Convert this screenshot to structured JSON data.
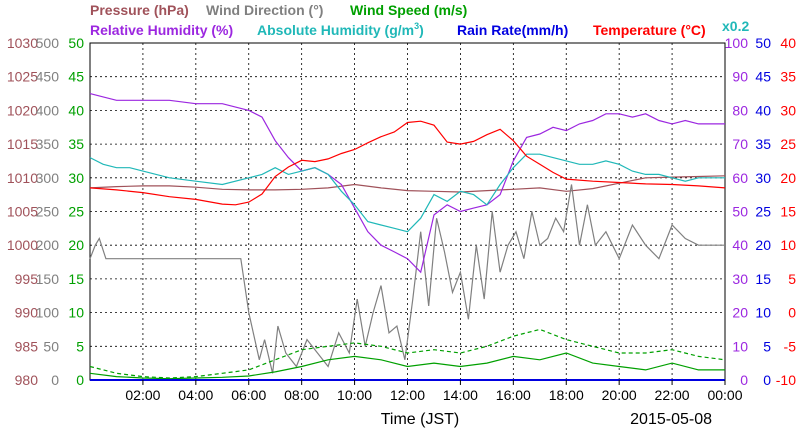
{
  "chart_data": {
    "type": "line",
    "date": "2015-05-08",
    "xlabel": "Time (JST)",
    "x_ticks": [
      "02:00",
      "04:00",
      "06:00",
      "08:00",
      "10:00",
      "12:00",
      "14:00",
      "16:00",
      "18:00",
      "20:00",
      "22:00",
      "00:00"
    ],
    "legend": [
      {
        "label": "Pressure (hPa)",
        "color": "#a0525a"
      },
      {
        "label": "Wind Direction (°)",
        "color": "#808080"
      },
      {
        "label": "Wind Speed (m/s)",
        "color": "#00a000"
      },
      {
        "label": "Relative Humidity (%)",
        "color": "#9c27e0"
      },
      {
        "label": "Absolute Humidity (g/m",
        "sup": "3",
        "close": ")",
        "color": "#20b8b8"
      },
      {
        "label": "Rain Rate(mm/h)",
        "color": "#0000e0"
      },
      {
        "label": "Temperature (°C)",
        "color": "#ff0000"
      },
      {
        "label": "x0.2",
        "color": "#20b8b8"
      }
    ],
    "axes": {
      "pressure": {
        "ylim": [
          980,
          1030
        ],
        "ticks": [
          "1030",
          "1025",
          "1020",
          "1015",
          "1010",
          "1005",
          "1000",
          "995",
          "990",
          "985",
          "980"
        ],
        "color": "#a0525a"
      },
      "wind_direction": {
        "ylim": [
          0,
          500
        ],
        "ticks": [
          "500",
          "450",
          "400",
          "350",
          "300",
          "250",
          "200",
          "150",
          "100",
          "50",
          "0"
        ],
        "color": "#808080"
      },
      "wind_speed": {
        "ylim": [
          0,
          50
        ],
        "ticks": [
          "50",
          "45",
          "40",
          "35",
          "30",
          "25",
          "20",
          "15",
          "10",
          "5",
          "0"
        ],
        "color": "#00a000"
      },
      "relative_humidity": {
        "ylim": [
          0,
          100
        ],
        "ticks": [
          "100",
          "90",
          "80",
          "70",
          "60",
          "50",
          "40",
          "30",
          "20",
          "10",
          "0"
        ],
        "color": "#9c27e0"
      },
      "rain_rate": {
        "ylim": [
          0,
          50
        ],
        "ticks": [
          "50",
          "45",
          "40",
          "35",
          "30",
          "25",
          "20",
          "15",
          "10",
          "5",
          "0"
        ],
        "color": "#0000e0"
      },
      "temperature": {
        "ylim": [
          -10,
          40
        ],
        "ticks": [
          "40",
          "35",
          "30",
          "25",
          "20",
          "15",
          "10",
          "5",
          "0",
          "-5",
          "-10"
        ],
        "color": "#ff0000"
      }
    },
    "series": [
      {
        "name": "Pressure (hPa)",
        "color": "#a0525a",
        "x": [
          0,
          1,
          2,
          3,
          4,
          5,
          6,
          7,
          8,
          9,
          10,
          11,
          12,
          13,
          14,
          15,
          16,
          17,
          18,
          19,
          20,
          21,
          22,
          23,
          24
        ],
        "y": [
          1008.5,
          1008.7,
          1008.8,
          1008.8,
          1008.6,
          1008.3,
          1008.2,
          1008.2,
          1008.3,
          1008.5,
          1009,
          1008.5,
          1008.1,
          1008.0,
          1007.9,
          1008.1,
          1008.3,
          1008.5,
          1008.0,
          1008.4,
          1009.2,
          1010.0,
          1010.1,
          1010.2,
          1010.3
        ]
      },
      {
        "name": "Wind Direction (°)",
        "color": "#808080",
        "x": [
          0,
          0.2,
          0.35,
          0.6,
          1,
          2,
          3,
          4,
          5,
          5.7,
          6.0,
          6.4,
          6.6,
          6.9,
          7.1,
          7.4,
          7.8,
          8.2,
          8.6,
          9,
          9.4,
          9.8,
          10.1,
          10.4,
          10.7,
          11.0,
          11.3,
          11.6,
          11.9,
          12.2,
          12.5,
          12.8,
          13.1,
          13.4,
          13.7,
          14.0,
          14.3,
          14.6,
          14.9,
          15.2,
          15.5,
          15.8,
          16.1,
          16.4,
          16.7,
          17.0,
          17.3,
          17.6,
          17.9,
          18.2,
          18.5,
          18.8,
          19.1,
          19.5,
          20,
          20.5,
          21,
          21.5,
          22,
          22.5,
          23,
          23.5,
          24
        ],
        "y": [
          180,
          200,
          210,
          180,
          180,
          180,
          180,
          180,
          180,
          180,
          100,
          30,
          60,
          10,
          80,
          40,
          20,
          60,
          40,
          20,
          70,
          40,
          120,
          50,
          100,
          140,
          70,
          80,
          30,
          120,
          220,
          110,
          240,
          190,
          130,
          160,
          90,
          200,
          120,
          250,
          160,
          200,
          220,
          180,
          250,
          200,
          210,
          240,
          220,
          290,
          200,
          260,
          200,
          220,
          180,
          230,
          200,
          180,
          230,
          210,
          200,
          200,
          200
        ]
      },
      {
        "name": "Wind Speed (m/s)",
        "color": "#00a000",
        "x": [
          0,
          1,
          2,
          3,
          4,
          5,
          6,
          7,
          8,
          9,
          10,
          11,
          12,
          13,
          14,
          15,
          16,
          17,
          18,
          19,
          20,
          21,
          22,
          23,
          24
        ],
        "y": [
          1,
          0.5,
          0.3,
          0.2,
          0.3,
          0.4,
          0.6,
          1.2,
          2,
          3,
          3.5,
          3,
          2,
          2.5,
          2,
          2.5,
          3.5,
          3,
          4,
          2.5,
          2,
          1.5,
          2.5,
          1.5,
          1.5
        ]
      },
      {
        "name": "Wind Speed gust (m/s)",
        "color": "#00a000",
        "x": [
          0,
          1,
          2,
          3,
          4,
          5,
          6,
          7,
          8,
          9,
          10,
          11,
          12,
          13,
          14,
          15,
          16,
          17,
          18,
          19,
          20,
          21,
          22,
          23,
          24
        ],
        "y": [
          2,
          1,
          0.5,
          0.3,
          0.5,
          1,
          1.5,
          3,
          4.5,
          5,
          5.5,
          5,
          4,
          4.5,
          4,
          5,
          6.5,
          7.5,
          6,
          5,
          4,
          4,
          4.5,
          3.5,
          3
        ]
      },
      {
        "name": "Relative Humidity (%)",
        "color": "#9c27e0",
        "x": [
          0,
          0.5,
          1,
          2,
          3,
          4,
          5,
          6,
          6.5,
          7,
          7.5,
          8,
          8.5,
          9,
          9.5,
          10,
          10.5,
          11,
          11.5,
          12,
          12.5,
          13,
          13.5,
          14,
          14.5,
          15,
          15.5,
          16,
          16.5,
          17,
          17.5,
          18,
          18.5,
          19,
          19.5,
          20,
          20.5,
          21,
          21.5,
          22,
          22.5,
          23,
          23.5,
          24
        ],
        "y": [
          85,
          84,
          83,
          83,
          83,
          82,
          82,
          80,
          78,
          71,
          66,
          62,
          63,
          61,
          58,
          51,
          44,
          40,
          38,
          36,
          32,
          49,
          52,
          50,
          51,
          52,
          55,
          65,
          72,
          73,
          75,
          74,
          76,
          77,
          79,
          79,
          78,
          79,
          77,
          76,
          77,
          76,
          76,
          76
        ]
      },
      {
        "name": "Absolute Humidity (g/m3) x0.2",
        "color": "#20b8b8",
        "x": [
          0,
          0.5,
          1,
          1.5,
          2,
          3,
          4,
          5,
          6,
          6.5,
          7,
          7.5,
          8,
          8.5,
          9,
          9.5,
          10,
          10.5,
          11,
          11.5,
          12,
          12.5,
          13,
          13.5,
          14,
          14.5,
          15,
          15.5,
          16,
          16.5,
          17,
          17.5,
          18,
          18.5,
          19,
          19.5,
          20,
          20.5,
          21,
          21.5,
          22,
          22.5,
          23,
          23.5,
          24
        ],
        "y": [
          66,
          64,
          63,
          63,
          62,
          60,
          59,
          58,
          60,
          61,
          63,
          61,
          62,
          63,
          61,
          56,
          52,
          47,
          46,
          45,
          44,
          48,
          55,
          53,
          56,
          55,
          52,
          58,
          63,
          67,
          67,
          66,
          65,
          64,
          64,
          65,
          64,
          62,
          61,
          61,
          60,
          59,
          60,
          60,
          60
        ]
      },
      {
        "name": "Rain Rate(mm/h)",
        "color": "#0000e0",
        "x": [
          0,
          24
        ],
        "y": [
          0,
          0
        ]
      },
      {
        "name": "Temperature (°C)",
        "color": "#ff0000",
        "x": [
          0,
          1,
          2,
          3,
          4,
          5,
          5.5,
          6,
          6.5,
          7,
          7.5,
          8,
          8.5,
          9,
          9.5,
          10,
          10.5,
          11,
          11.5,
          12,
          12.5,
          13,
          13.5,
          14,
          14.5,
          15,
          15.5,
          16,
          16.5,
          17,
          17.5,
          18,
          19,
          20,
          21,
          22,
          23,
          24
        ],
        "y": [
          18.5,
          18.2,
          17.8,
          17.2,
          16.8,
          16.1,
          16,
          16.4,
          17.6,
          20.2,
          21.6,
          22.6,
          22.4,
          22.8,
          23.6,
          24.2,
          25.2,
          26.1,
          26.8,
          28.2,
          28.4,
          27.8,
          25.3,
          25,
          25.4,
          26.4,
          27.2,
          25.5,
          23.2,
          22,
          20.8,
          19.8,
          19.5,
          19.3,
          19.1,
          19.0,
          18.8,
          18.5
        ]
      }
    ]
  }
}
